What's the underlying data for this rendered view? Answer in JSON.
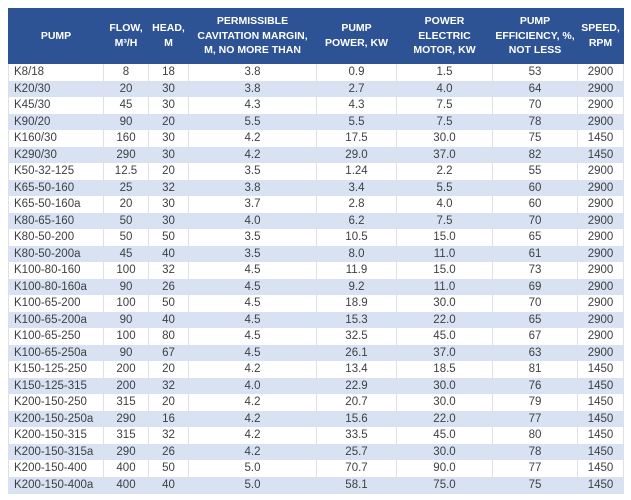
{
  "colors": {
    "header_bg": "#2e5395",
    "header_text": "#ffffff",
    "row_stripe": "#d9e2f3",
    "row_plain": "#ffffff",
    "grid_line": "#dbe0ea",
    "data_text": "#3d3f42"
  },
  "header_display": [
    "PUMP",
    "FLOW,\nM³/H",
    "HEAD,\nM",
    "PERMISSIBLE\nCAVITATION MARGIN,\nM, NO MORE THAN",
    "PUMP\nPOWER, KW",
    "POWER\nELECTRIC\nMOTOR, KW",
    "PUMP\nEFFICIENCY, %,\nNOT LESS",
    "SPEED,\nRPM"
  ],
  "chart_data": {
    "type": "table",
    "title": "",
    "columns": [
      "PUMP",
      "FLOW, M³/H",
      "HEAD, M",
      "PERMISSIBLE CAVITATION MARGIN, M, NO MORE THAN",
      "PUMP POWER, KW",
      "POWER ELECTRIC MOTOR, KW",
      "PUMP EFFICIENCY, %, NOT LESS",
      "SPEED, RPM"
    ],
    "rows": [
      [
        "K8/18",
        "8",
        "18",
        "3.8",
        "0.9",
        "1.5",
        "53",
        "2900"
      ],
      [
        "K20/30",
        "20",
        "30",
        "3.8",
        "2.7",
        "4.0",
        "64",
        "2900"
      ],
      [
        "K45/30",
        "45",
        "30",
        "4.3",
        "4.3",
        "7.5",
        "70",
        "2900"
      ],
      [
        "K90/20",
        "90",
        "20",
        "5.5",
        "5.5",
        "7.5",
        "78",
        "2900"
      ],
      [
        "K160/30",
        "160",
        "30",
        "4.2",
        "17.5",
        "30.0",
        "75",
        "1450"
      ],
      [
        "K290/30",
        "290",
        "30",
        "4.2",
        "29.0",
        "37.0",
        "82",
        "1450"
      ],
      [
        "K50-32-125",
        "12.5",
        "20",
        "3.5",
        "1.24",
        "2.2",
        "55",
        "2900"
      ],
      [
        "K65-50-160",
        "25",
        "32",
        "3.8",
        "3.4",
        "5.5",
        "60",
        "2900"
      ],
      [
        "K65-50-160a",
        "20",
        "30",
        "3.7",
        "2.8",
        "4.0",
        "60",
        "2900"
      ],
      [
        "K80-65-160",
        "50",
        "30",
        "4.0",
        "6.2",
        "7.5",
        "70",
        "2900"
      ],
      [
        "K80-50-200",
        "50",
        "50",
        "3.5",
        "10.5",
        "15.0",
        "65",
        "2900"
      ],
      [
        "K80-50-200a",
        "45",
        "40",
        "3.5",
        "8.0",
        "11.0",
        "61",
        "2900"
      ],
      [
        "K100-80-160",
        "100",
        "32",
        "4.5",
        "11.9",
        "15.0",
        "73",
        "2900"
      ],
      [
        "K100-80-160a",
        "90",
        "26",
        "4.5",
        "9.2",
        "11.0",
        "69",
        "2900"
      ],
      [
        "K100-65-200",
        "100",
        "50",
        "4.5",
        "18.9",
        "30.0",
        "70",
        "2900"
      ],
      [
        "K100-65-200a",
        "90",
        "40",
        "4.5",
        "15.3",
        "22.0",
        "65",
        "2900"
      ],
      [
        "K100-65-250",
        "100",
        "80",
        "4.5",
        "32.5",
        "45.0",
        "67",
        "2900"
      ],
      [
        "K100-65-250a",
        "90",
        "67",
        "4.5",
        "26.1",
        "37.0",
        "63",
        "2900"
      ],
      [
        "K150-125-250",
        "200",
        "20",
        "4.2",
        "13.4",
        "18.5",
        "81",
        "1450"
      ],
      [
        "K150-125-315",
        "200",
        "32",
        "4.0",
        "22.9",
        "30.0",
        "76",
        "1450"
      ],
      [
        "K200-150-250",
        "315",
        "20",
        "4.2",
        "20.7",
        "30.0",
        "79",
        "1450"
      ],
      [
        "K200-150-250a",
        "290",
        "16",
        "4.2",
        "15.6",
        "22.0",
        "77",
        "1450"
      ],
      [
        "K200-150-315",
        "315",
        "32",
        "4.2",
        "33.5",
        "45.0",
        "80",
        "1450"
      ],
      [
        "K200-150-315a",
        "290",
        "26",
        "4.2",
        "25.7",
        "30.0",
        "78",
        "1450"
      ],
      [
        "K200-150-400",
        "400",
        "50",
        "5.0",
        "70.7",
        "90.0",
        "77",
        "1450"
      ],
      [
        "K200-150-400a",
        "400",
        "40",
        "5.0",
        "58.1",
        "75.0",
        "75",
        "1450"
      ]
    ]
  }
}
